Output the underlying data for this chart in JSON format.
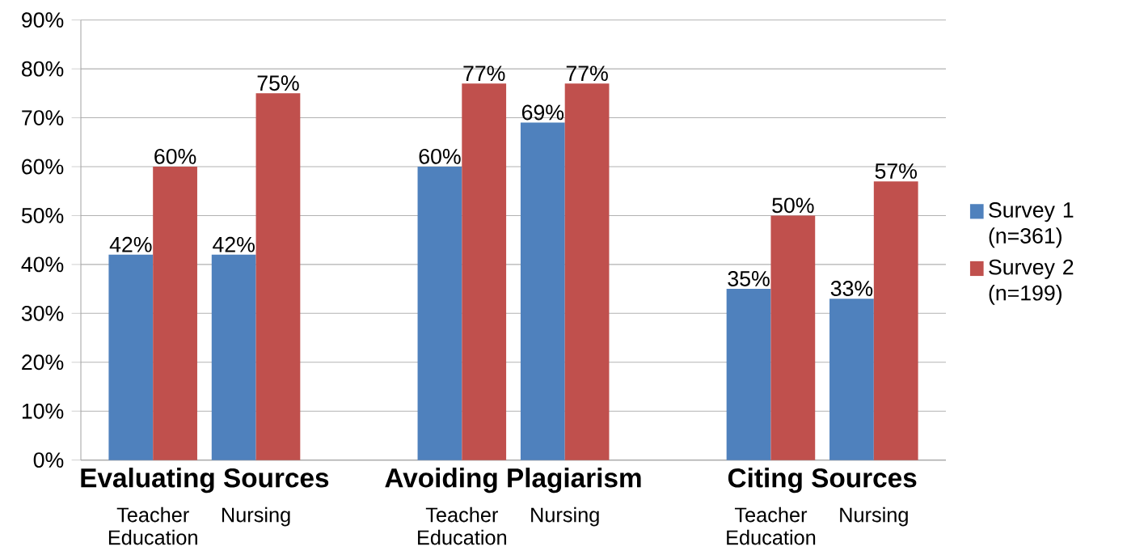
{
  "chart_data": {
    "type": "bar",
    "categories": [
      "Teacher Education",
      "Nursing",
      null,
      "Teacher Education",
      "Nursing",
      null,
      "Teacher Education",
      "Nursing"
    ],
    "series": [
      {
        "name": "Survey 1 (n=361)",
        "color": "#4f81bd",
        "values": [
          42,
          42,
          null,
          60,
          69,
          null,
          35,
          33
        ],
        "value_labels": [
          "42%",
          "42%",
          null,
          "60%",
          "69%",
          null,
          "35%",
          "33%"
        ]
      },
      {
        "name": "Survey 2 (n=199)",
        "color": "#c0504d",
        "values": [
          60,
          75,
          null,
          77,
          77,
          null,
          50,
          57
        ],
        "value_labels": [
          "60%",
          "75%",
          null,
          "77%",
          "77%",
          null,
          "50%",
          "57%"
        ]
      }
    ],
    "annotations": [
      "Evaluating Sources",
      "Avoiding Plagiarism",
      "Citing Sources"
    ],
    "ylim": [
      0,
      90
    ],
    "yticks": [
      {
        "value": 0,
        "label": "0%"
      },
      {
        "value": 10,
        "label": "10%"
      },
      {
        "value": 20,
        "label": "20%"
      },
      {
        "value": 30,
        "label": "30%"
      },
      {
        "value": 40,
        "label": "40%"
      },
      {
        "value": 50,
        "label": "50%"
      },
      {
        "value": 60,
        "label": "60%"
      },
      {
        "value": 70,
        "label": "70%"
      },
      {
        "value": 80,
        "label": "80%"
      },
      {
        "value": 90,
        "label": "90%"
      }
    ],
    "grid": "y",
    "legend": "right"
  }
}
